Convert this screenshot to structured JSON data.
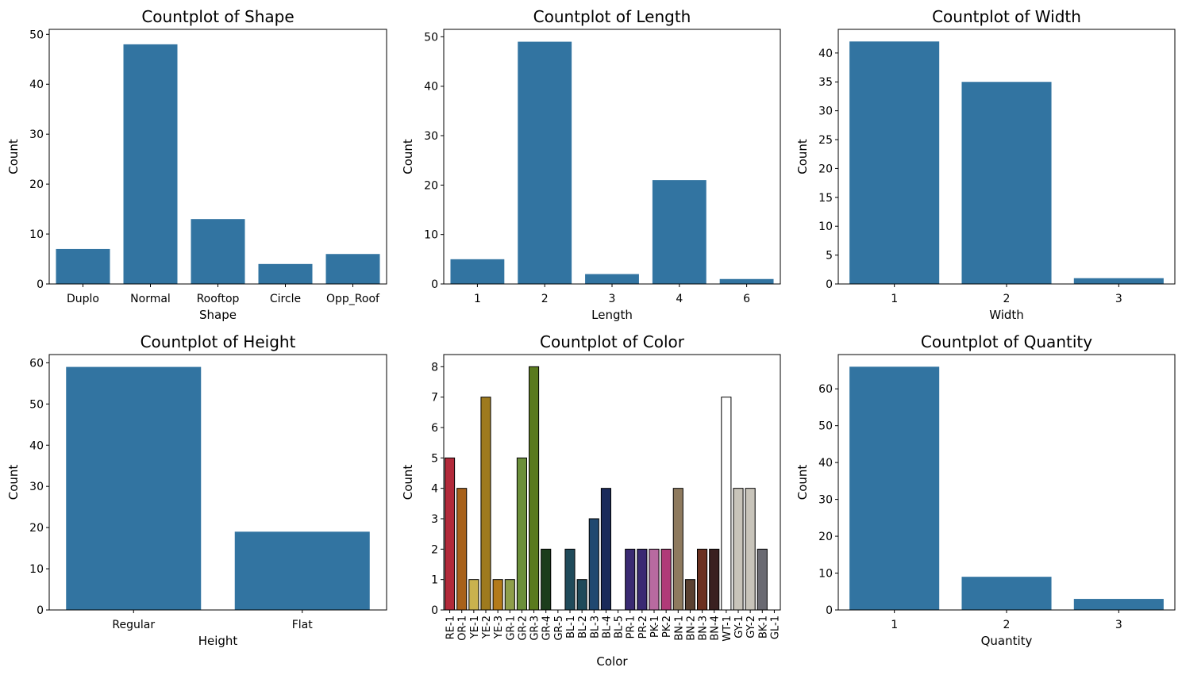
{
  "chart_data": [
    {
      "type": "bar",
      "title": "Countplot of Shape",
      "xlabel": "Shape",
      "ylabel": "Count",
      "categories": [
        "Duplo",
        "Normal",
        "Rooftop",
        "Circle",
        "Opp_Roof"
      ],
      "values": [
        7,
        48,
        13,
        4,
        6
      ],
      "ylim": [
        0,
        51
      ],
      "yticks": [
        0,
        10,
        20,
        30,
        40,
        50
      ],
      "bar_color": "#3274a1"
    },
    {
      "type": "bar",
      "title": "Countplot of Length",
      "xlabel": "Length",
      "ylabel": "Count",
      "categories": [
        "1",
        "2",
        "3",
        "4",
        "6"
      ],
      "values": [
        5,
        49,
        2,
        21,
        1
      ],
      "ylim": [
        0,
        51.5
      ],
      "yticks": [
        0,
        10,
        20,
        30,
        40,
        50
      ],
      "bar_color": "#3274a1"
    },
    {
      "type": "bar",
      "title": "Countplot of Width",
      "xlabel": "Width",
      "ylabel": "Count",
      "categories": [
        "1",
        "2",
        "3"
      ],
      "values": [
        42,
        35,
        1
      ],
      "ylim": [
        0,
        44.1
      ],
      "yticks": [
        0,
        5,
        10,
        15,
        20,
        25,
        30,
        35,
        40
      ],
      "bar_color": "#3274a1"
    },
    {
      "type": "bar",
      "title": "Countplot of Height",
      "xlabel": "Height",
      "ylabel": "Count",
      "categories": [
        "Regular",
        "Flat"
      ],
      "values": [
        59,
        19
      ],
      "ylim": [
        0,
        62
      ],
      "yticks": [
        0,
        10,
        20,
        30,
        40,
        50,
        60
      ],
      "bar_color": "#3274a1"
    },
    {
      "type": "bar",
      "title": "Countplot of Color",
      "xlabel": "Color",
      "ylabel": "Count",
      "categories": [
        "RE-1",
        "OR-1",
        "YE-1",
        "YE-2",
        "YE-3",
        "GR-1",
        "GR-2",
        "GR-3",
        "GR-4",
        "GR-5",
        "BL-1",
        "BL-2",
        "BL-3",
        "BL-4",
        "BL-5",
        "PR-1",
        "PR-2",
        "PK-1",
        "PK-2",
        "BN-1",
        "BN-2",
        "BN-3",
        "BN-4",
        "WT-1",
        "GY-1",
        "GY-2",
        "BK-1",
        "GL-1"
      ],
      "values": [
        5,
        4,
        1,
        7,
        1,
        1,
        5,
        8,
        2,
        0,
        2,
        1,
        3,
        4,
        0,
        2,
        2,
        2,
        2,
        4,
        1,
        2,
        2,
        7,
        4,
        4,
        2,
        0
      ],
      "colors": [
        "#b22a3a",
        "#a8611a",
        "#c9b24e",
        "#9e7a1e",
        "#b37a1a",
        "#8e9e4a",
        "#6b8f3a",
        "#5a7a1e",
        "#1c3d1c",
        "#ffffff",
        "#1f4a5a",
        "#1f4a5a",
        "#1f4870",
        "#1a2a5a",
        "#ffffff",
        "#3a2a72",
        "#3a2a72",
        "#b86aa0",
        "#b03a78",
        "#8e7a5e",
        "#5a4030",
        "#6b3020",
        "#3a2020",
        "#ffffff",
        "#c8c4ba",
        "#c8c4ba",
        "#6a6a72",
        "#141414"
      ],
      "ylim": [
        0,
        8.4
      ],
      "yticks": [
        0,
        1,
        2,
        3,
        4,
        5,
        6,
        7,
        8
      ],
      "bar_edgecolor": "#000000"
    },
    {
      "type": "bar",
      "title": "Countplot of Quantity",
      "xlabel": "Quantity",
      "ylabel": "Count",
      "categories": [
        "1",
        "2",
        "3"
      ],
      "values": [
        66,
        9,
        3
      ],
      "ylim": [
        0,
        69.3
      ],
      "yticks": [
        0,
        10,
        20,
        30,
        40,
        50,
        60
      ],
      "bar_color": "#3274a1"
    }
  ]
}
